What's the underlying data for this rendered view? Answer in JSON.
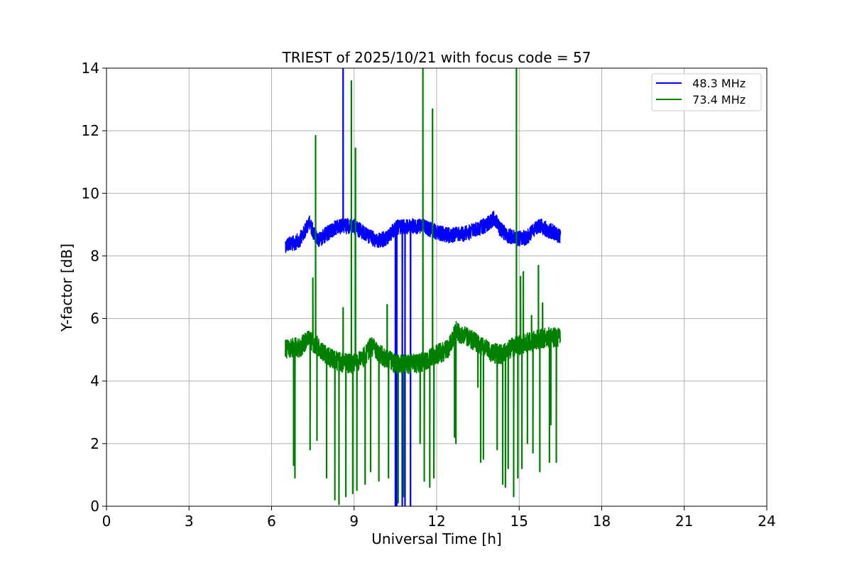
{
  "chart_data": {
    "type": "line",
    "title": "TRIEST of 2025/10/21 with focus code = 57",
    "xlabel": "Universal Time [h]",
    "ylabel": "Y-factor [dB]",
    "xlim": [
      0,
      24
    ],
    "ylim": [
      0,
      14
    ],
    "xticks": [
      0,
      3,
      6,
      9,
      12,
      15,
      18,
      21,
      24
    ],
    "yticks": [
      0,
      2,
      4,
      6,
      8,
      10,
      12,
      14
    ],
    "grid": true,
    "legend_position": "top-right",
    "series": [
      {
        "name": "  48.3 MHz",
        "color": "#0000ff",
        "baseline": [
          [
            6.5,
            8.35
          ],
          [
            6.8,
            8.4
          ],
          [
            7.0,
            8.5
          ],
          [
            7.2,
            8.75
          ],
          [
            7.35,
            9.1
          ],
          [
            7.5,
            8.8
          ],
          [
            7.7,
            8.5
          ],
          [
            8.0,
            8.7
          ],
          [
            8.3,
            8.9
          ],
          [
            8.6,
            8.95
          ],
          [
            9.0,
            8.95
          ],
          [
            9.4,
            8.7
          ],
          [
            9.8,
            8.5
          ],
          [
            10.2,
            8.55
          ],
          [
            10.5,
            8.9
          ],
          [
            11.0,
            8.95
          ],
          [
            11.5,
            8.95
          ],
          [
            12.0,
            8.75
          ],
          [
            12.5,
            8.65
          ],
          [
            13.0,
            8.7
          ],
          [
            13.5,
            8.85
          ],
          [
            13.9,
            9.05
          ],
          [
            14.1,
            9.2
          ],
          [
            14.3,
            8.85
          ],
          [
            14.6,
            8.65
          ],
          [
            15.0,
            8.55
          ],
          [
            15.3,
            8.6
          ],
          [
            15.5,
            8.85
          ],
          [
            15.8,
            8.95
          ],
          [
            16.1,
            8.8
          ],
          [
            16.3,
            8.75
          ],
          [
            16.5,
            8.6
          ]
        ],
        "band": 0.35,
        "spikes": [
          [
            8.6,
            14.0
          ],
          [
            10.5,
            0.0
          ],
          [
            10.55,
            0.0
          ],
          [
            10.75,
            0.0
          ],
          [
            10.85,
            0.0
          ],
          [
            11.05,
            0.0
          ]
        ]
      },
      {
        "name": "  73.4 MHz",
        "color": "#008000",
        "baseline": [
          [
            6.5,
            5.0
          ],
          [
            6.8,
            5.1
          ],
          [
            7.0,
            5.05
          ],
          [
            7.3,
            5.3
          ],
          [
            7.6,
            5.2
          ],
          [
            8.0,
            4.8
          ],
          [
            8.5,
            4.6
          ],
          [
            9.0,
            4.55
          ],
          [
            9.3,
            4.7
          ],
          [
            9.6,
            5.1
          ],
          [
            9.8,
            5.0
          ],
          [
            10.1,
            4.75
          ],
          [
            10.5,
            4.55
          ],
          [
            11.0,
            4.55
          ],
          [
            11.5,
            4.6
          ],
          [
            12.0,
            4.85
          ],
          [
            12.4,
            5.0
          ],
          [
            12.7,
            5.6
          ],
          [
            13.0,
            5.45
          ],
          [
            13.5,
            5.2
          ],
          [
            14.0,
            4.9
          ],
          [
            14.4,
            4.85
          ],
          [
            14.8,
            5.1
          ],
          [
            15.2,
            5.2
          ],
          [
            15.6,
            5.3
          ],
          [
            16.0,
            5.4
          ],
          [
            16.5,
            5.4
          ]
        ],
        "band": 0.45,
        "spikes": [
          [
            6.8,
            1.3
          ],
          [
            6.85,
            0.9
          ],
          [
            7.4,
            1.8
          ],
          [
            7.5,
            7.3
          ],
          [
            7.6,
            11.85
          ],
          [
            7.65,
            2.1
          ],
          [
            8.0,
            0.9
          ],
          [
            8.3,
            0.2
          ],
          [
            8.45,
            0.05
          ],
          [
            8.6,
            6.35
          ],
          [
            8.7,
            0.3
          ],
          [
            8.9,
            13.6
          ],
          [
            8.95,
            0.4
          ],
          [
            9.05,
            11.45
          ],
          [
            9.1,
            0.5
          ],
          [
            9.4,
            0.7
          ],
          [
            9.6,
            1.1
          ],
          [
            9.9,
            0.8
          ],
          [
            10.2,
            6.45
          ],
          [
            10.25,
            0.9
          ],
          [
            10.6,
            0.1
          ],
          [
            10.8,
            0.3
          ],
          [
            11.4,
            2.0
          ],
          [
            11.5,
            14.0
          ],
          [
            11.55,
            0.8
          ],
          [
            11.75,
            0.6
          ],
          [
            11.85,
            12.7
          ],
          [
            11.9,
            0.9
          ],
          [
            12.65,
            2.2
          ],
          [
            12.7,
            2.0
          ],
          [
            13.5,
            3.8
          ],
          [
            13.6,
            1.4
          ],
          [
            13.7,
            1.5
          ],
          [
            14.2,
            1.8
          ],
          [
            14.4,
            0.7
          ],
          [
            14.5,
            0.6
          ],
          [
            14.6,
            1.2
          ],
          [
            14.8,
            0.3
          ],
          [
            14.9,
            14.0
          ],
          [
            14.95,
            0.9
          ],
          [
            15.05,
            7.35
          ],
          [
            15.1,
            1.2
          ],
          [
            15.15,
            7.5
          ],
          [
            15.3,
            2.0
          ],
          [
            15.45,
            6.1
          ],
          [
            15.5,
            1.7
          ],
          [
            15.7,
            7.7
          ],
          [
            15.75,
            1.1
          ],
          [
            15.85,
            6.5
          ],
          [
            16.1,
            1.4
          ],
          [
            16.15,
            2.6
          ],
          [
            16.3,
            5.7
          ],
          [
            16.35,
            1.4
          ]
        ]
      }
    ]
  }
}
